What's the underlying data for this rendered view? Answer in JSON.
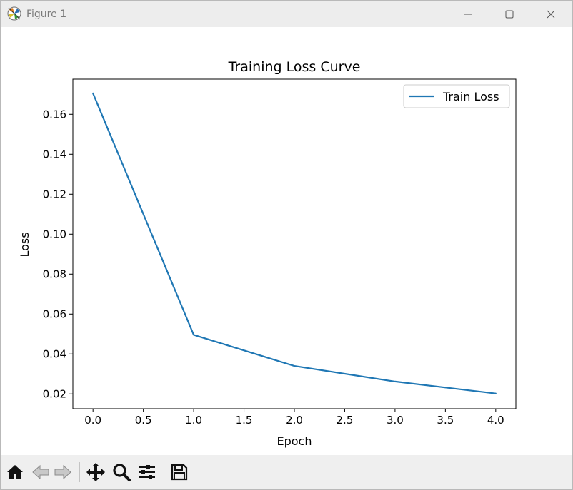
{
  "window": {
    "title": "Figure 1",
    "icon_name": "matplotlib-figure-icon",
    "controls": [
      "minimize-icon",
      "maximize-icon",
      "close-icon"
    ]
  },
  "chart_data": {
    "type": "line",
    "title": "Training Loss Curve",
    "xlabel": "Epoch",
    "ylabel": "Loss",
    "xlim": [
      -0.2,
      4.2
    ],
    "ylim": [
      0.0126,
      0.1776
    ],
    "xticks": [
      0.0,
      0.5,
      1.0,
      1.5,
      2.0,
      2.5,
      3.0,
      3.5,
      4.0
    ],
    "xtick_labels": [
      "0.0",
      "0.5",
      "1.0",
      "1.5",
      "2.0",
      "2.5",
      "3.0",
      "3.5",
      "4.0"
    ],
    "yticks": [
      0.02,
      0.04,
      0.06,
      0.08,
      0.1,
      0.12,
      0.14,
      0.16
    ],
    "ytick_labels": [
      "0.02",
      "0.04",
      "0.06",
      "0.08",
      "0.10",
      "0.12",
      "0.14",
      "0.16"
    ],
    "grid": false,
    "legend_position": "upper right",
    "series": [
      {
        "name": "Train Loss",
        "color": "#1f77b4",
        "x": [
          0,
          1,
          2,
          3,
          4
        ],
        "y": [
          0.1705,
          0.0496,
          0.034,
          0.0262,
          0.0202
        ]
      }
    ]
  },
  "toolbar": {
    "buttons": [
      "home-icon",
      "back-icon",
      "forward-icon",
      "pan-icon",
      "zoom-icon",
      "configure-subplots-icon",
      "save-icon"
    ]
  }
}
